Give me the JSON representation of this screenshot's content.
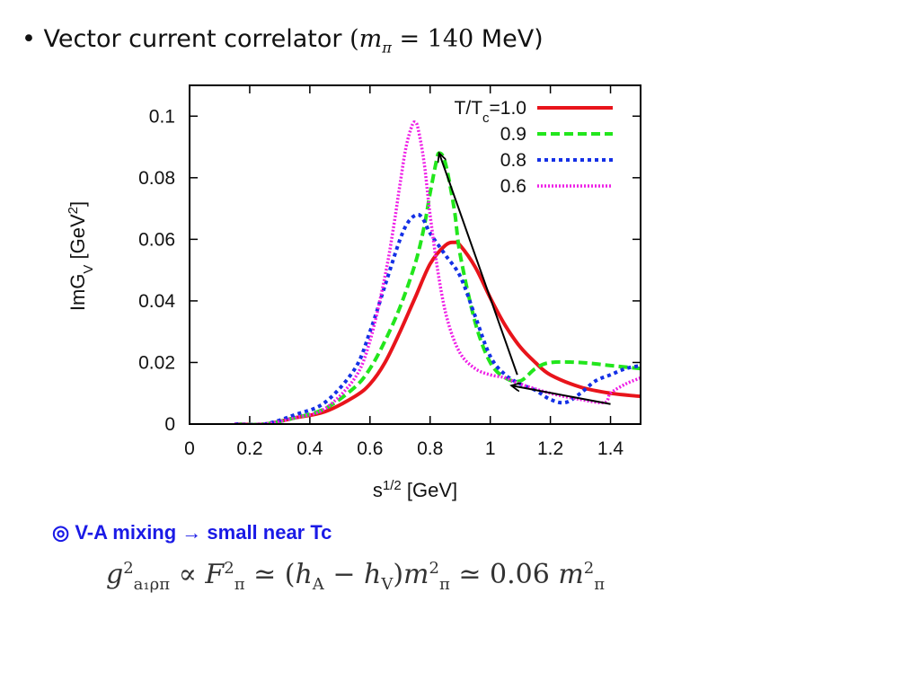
{
  "heading": {
    "bullet": "•",
    "text": "Vector current correlator",
    "math_open": "(",
    "math_var": "m",
    "math_sub": "π",
    "math_eq": " = 140",
    "math_unit": " MeV)"
  },
  "chart_data": {
    "type": "line",
    "xlabel": "s",
    "xlabel_sup": "1/2",
    "xlabel_unit": "[GeV]",
    "ylabel": "ImG",
    "ylabel_sub": "V",
    "ylabel_unit": "[GeV",
    "ylabel_unit_sup": "2",
    "ylabel_close": "]",
    "xlim": [
      0,
      1.5
    ],
    "ylim": [
      0,
      0.11
    ],
    "xticks": [
      "0",
      "0.2",
      "0.4",
      "0.6",
      "0.8",
      "1",
      "1.2",
      "1.4"
    ],
    "yticks": [
      "0",
      "0.02",
      "0.04",
      "0.06",
      "0.08",
      "0.1"
    ],
    "legend_placement": "top-right",
    "legend_prefix": "T/T",
    "legend_prefix_sub": "c",
    "legend_prefix_eq": "=",
    "series": [
      {
        "name": "1.0",
        "color": "#e8141b",
        "dash": "solid",
        "x": [
          0.15,
          0.25,
          0.35,
          0.45,
          0.55,
          0.6,
          0.65,
          0.7,
          0.75,
          0.8,
          0.85,
          0.88,
          0.9,
          0.95,
          1.0,
          1.05,
          1.1,
          1.15,
          1.2,
          1.3,
          1.4,
          1.5
        ],
        "y": [
          0,
          0,
          0.002,
          0.004,
          0.009,
          0.013,
          0.02,
          0.03,
          0.041,
          0.052,
          0.058,
          0.059,
          0.058,
          0.051,
          0.041,
          0.032,
          0.025,
          0.02,
          0.016,
          0.012,
          0.01,
          0.009
        ]
      },
      {
        "name": "0.9",
        "color": "#22e61c",
        "dash": "dashed",
        "x": [
          0.15,
          0.25,
          0.35,
          0.45,
          0.55,
          0.6,
          0.65,
          0.7,
          0.75,
          0.78,
          0.8,
          0.82,
          0.83,
          0.85,
          0.88,
          0.9,
          0.95,
          1.0,
          1.05,
          1.1,
          1.15,
          1.2,
          1.3,
          1.4,
          1.5
        ],
        "y": [
          0,
          0,
          0.002,
          0.005,
          0.012,
          0.018,
          0.027,
          0.038,
          0.052,
          0.064,
          0.075,
          0.085,
          0.088,
          0.085,
          0.07,
          0.055,
          0.033,
          0.02,
          0.015,
          0.014,
          0.018,
          0.02,
          0.02,
          0.019,
          0.018
        ]
      },
      {
        "name": "0.8",
        "color": "#1430e6",
        "dash": "dotted",
        "x": [
          0.15,
          0.25,
          0.35,
          0.45,
          0.55,
          0.6,
          0.65,
          0.7,
          0.73,
          0.76,
          0.78,
          0.8,
          0.85,
          0.9,
          0.95,
          1.0,
          1.05,
          1.1,
          1.15,
          1.2,
          1.25,
          1.3,
          1.35,
          1.4,
          1.45,
          1.5
        ],
        "y": [
          0,
          0,
          0.003,
          0.007,
          0.018,
          0.03,
          0.045,
          0.06,
          0.066,
          0.068,
          0.066,
          0.062,
          0.055,
          0.048,
          0.035,
          0.022,
          0.016,
          0.013,
          0.011,
          0.008,
          0.007,
          0.01,
          0.014,
          0.016,
          0.018,
          0.019
        ]
      },
      {
        "name": "0.6",
        "color": "#ee1ee6",
        "dash": "densedotted",
        "x": [
          0.15,
          0.25,
          0.35,
          0.45,
          0.55,
          0.6,
          0.65,
          0.68,
          0.7,
          0.72,
          0.74,
          0.75,
          0.76,
          0.78,
          0.8,
          0.83,
          0.86,
          0.9,
          0.95,
          1.0,
          1.05,
          1.1,
          1.2,
          1.3,
          1.38,
          1.4,
          1.45,
          1.5
        ],
        "y": [
          0,
          0,
          0.002,
          0.005,
          0.015,
          0.027,
          0.048,
          0.065,
          0.078,
          0.09,
          0.097,
          0.098,
          0.096,
          0.085,
          0.068,
          0.047,
          0.033,
          0.023,
          0.018,
          0.016,
          0.015,
          0.013,
          0.01,
          0.008,
          0.007,
          0.01,
          0.013,
          0.015
        ]
      }
    ],
    "arrows": [
      {
        "from": [
          1.4,
          0.0065
        ],
        "to": [
          1.07,
          0.0125
        ]
      },
      {
        "from": [
          1.09,
          0.016
        ],
        "to": [
          0.83,
          0.088
        ]
      }
    ]
  },
  "note": {
    "symbol": "◎",
    "text": " V-A mixing  → small near Tc"
  },
  "formula": {
    "g": "g",
    "g_sup": "2",
    "g_sub": "a₁ρπ",
    "prop": " ∝ ",
    "F": "F",
    "F_sup": "2",
    "F_sub": "π",
    "approx1": " ≃ (",
    "hA": "h",
    "hA_sub": "A",
    "minus": " − ",
    "hV": "h",
    "hV_sub": "V",
    "close": ")",
    "m1": "m",
    "m1_sup": "2",
    "m1_sub": "π",
    "approx2": " ≃ 0.06 ",
    "m2": "m",
    "m2_sup": "2",
    "m2_sub": "π"
  }
}
